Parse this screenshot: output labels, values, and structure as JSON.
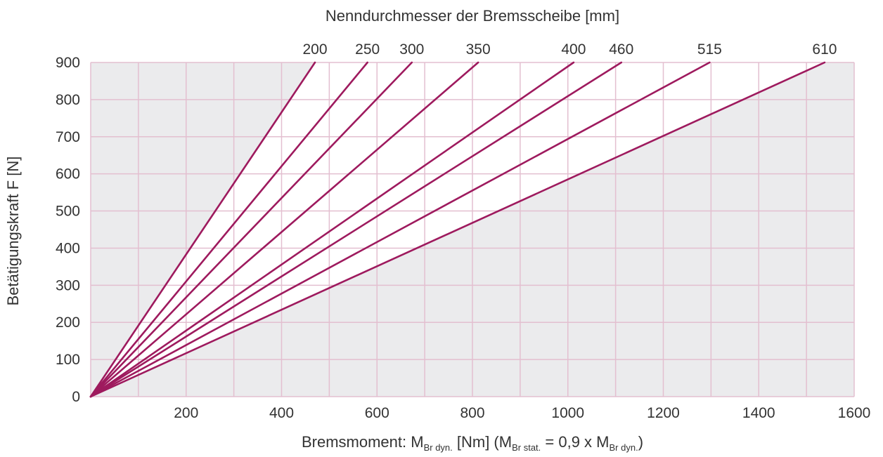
{
  "chart_data": {
    "type": "line",
    "top_title": "Nenndurchmesser der Bremsscheibe [mm]",
    "xlabel": {
      "parts": [
        "Bremsmoment: M",
        "Br dyn.",
        " [Nm] (M",
        "Br stat.",
        " = 0,9 x M",
        "Br dyn.",
        ")"
      ]
    },
    "ylabel": "Betätigungskraft F [N]",
    "xlim": [
      0,
      1600
    ],
    "ylim": [
      0,
      900
    ],
    "x_ticks": [
      200,
      400,
      600,
      800,
      1000,
      1200,
      1400,
      1600
    ],
    "y_ticks": [
      0,
      100,
      200,
      300,
      400,
      500,
      600,
      700,
      800,
      900
    ],
    "grid": true,
    "series": [
      {
        "name": "200",
        "x": [
          0,
          470
        ],
        "y": [
          0,
          900
        ]
      },
      {
        "name": "250",
        "x": [
          0,
          580
        ],
        "y": [
          0,
          900
        ]
      },
      {
        "name": "300",
        "x": [
          0,
          673
        ],
        "y": [
          0,
          900
        ]
      },
      {
        "name": "350",
        "x": [
          0,
          812
        ],
        "y": [
          0,
          900
        ]
      },
      {
        "name": "400",
        "x": [
          0,
          1012
        ],
        "y": [
          0,
          900
        ]
      },
      {
        "name": "460",
        "x": [
          0,
          1112
        ],
        "y": [
          0,
          900
        ]
      },
      {
        "name": "515",
        "x": [
          0,
          1297
        ],
        "y": [
          0,
          900
        ]
      },
      {
        "name": "610",
        "x": [
          0,
          1538
        ],
        "y": [
          0,
          900
        ]
      }
    ],
    "colors": {
      "line": "#9e1a5e",
      "grid": "#e3bfd0",
      "background_shaded": "#ebebed",
      "background_band": "#ffffff",
      "text": "#333333"
    }
  }
}
